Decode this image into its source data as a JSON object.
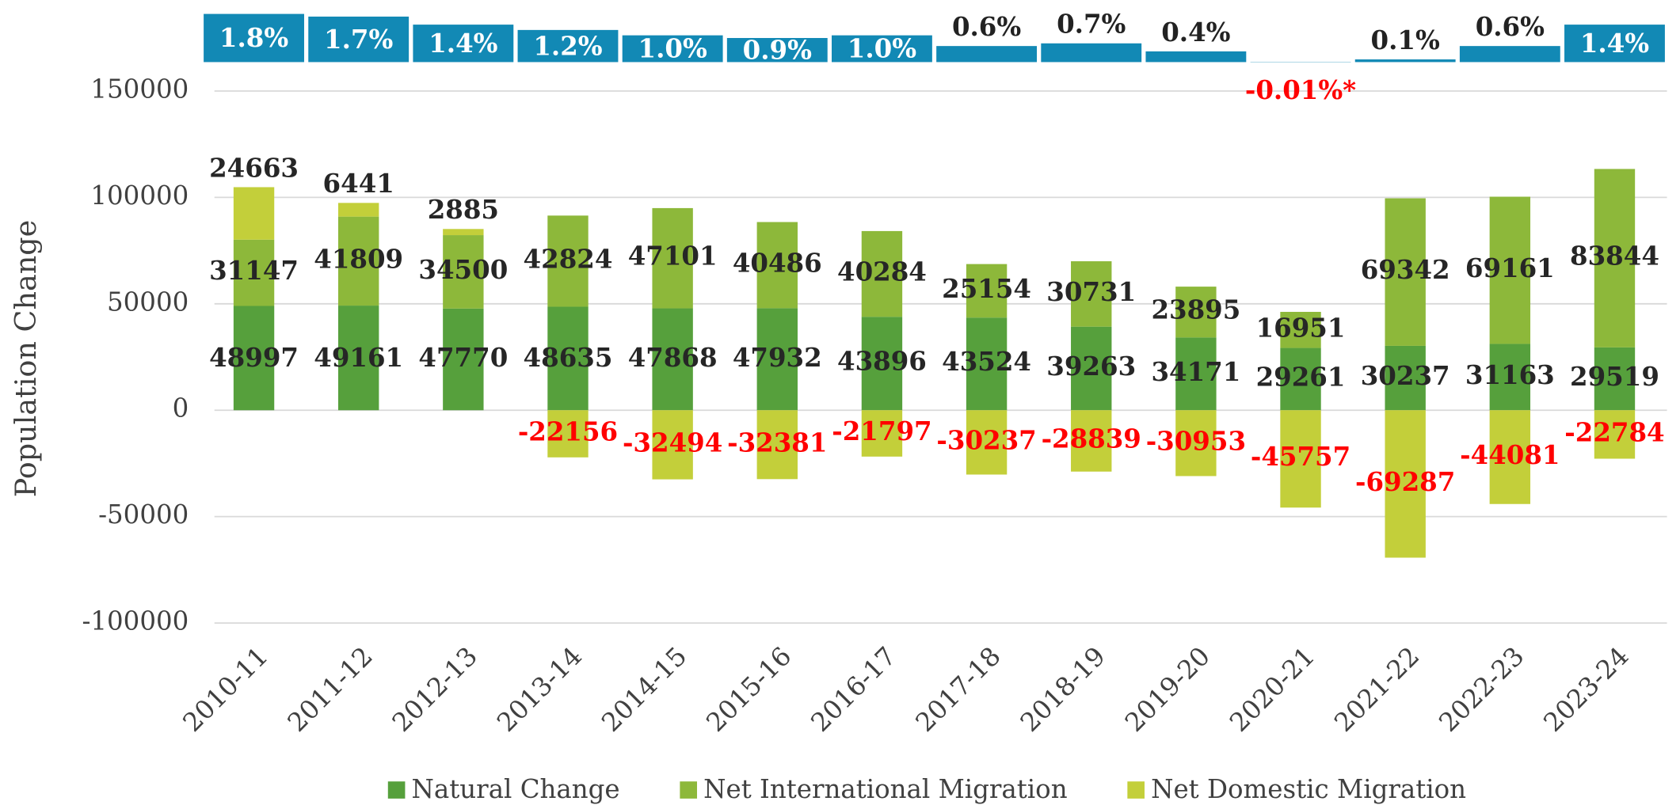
{
  "chart_data": {
    "type": "stacked-bar",
    "y_label": "Population Change",
    "categories": [
      "2010-11",
      "2011-12",
      "2012-13",
      "2013-14",
      "2014-15",
      "2015-16",
      "2016-17",
      "2017-18",
      "2018-19",
      "2019-20",
      "2020-21",
      "2021-22",
      "2022-23",
      "2023-24"
    ],
    "series": [
      {
        "name": "Natural Change",
        "color": "#56a03c",
        "values": [
          48997,
          49161,
          47770,
          48635,
          47868,
          47932,
          43896,
          43524,
          39263,
          34171,
          29261,
          30237,
          31163,
          29519
        ]
      },
      {
        "name": "Net International Migration",
        "color": "#8db83a",
        "values": [
          31147,
          41809,
          34500,
          42824,
          47101,
          40486,
          40284,
          25154,
          30731,
          23895,
          16951,
          69342,
          69161,
          83844
        ]
      },
      {
        "name": "Net Domestic Migration",
        "color": "#c3cf3a",
        "values": [
          24663,
          6441,
          2885,
          -22156,
          -32494,
          -32381,
          -21797,
          -30237,
          -28839,
          -30953,
          -45757,
          -69287,
          -44081,
          -22784
        ]
      }
    ],
    "growth": {
      "color": "#1289b5",
      "values": [
        1.8,
        1.7,
        1.4,
        1.2,
        1.0,
        0.9,
        1.0,
        0.6,
        0.7,
        0.4,
        -0.01,
        0.1,
        0.6,
        1.4
      ],
      "value_labels": [
        "1.8%",
        "1.7%",
        "1.4%",
        "1.2%",
        "1.0%",
        "0.9%",
        "1.0%",
        "0.6%",
        "0.7%",
        "0.4%",
        "-0.01%*",
        "0.1%",
        "0.6%",
        "1.4%"
      ],
      "y2lim": [
        0,
        2
      ]
    },
    "ylim": [
      -100000,
      150000
    ],
    "yticks": [
      -100000,
      -50000,
      0,
      50000,
      100000,
      150000
    ],
    "grid": true,
    "legend": "bottom"
  }
}
